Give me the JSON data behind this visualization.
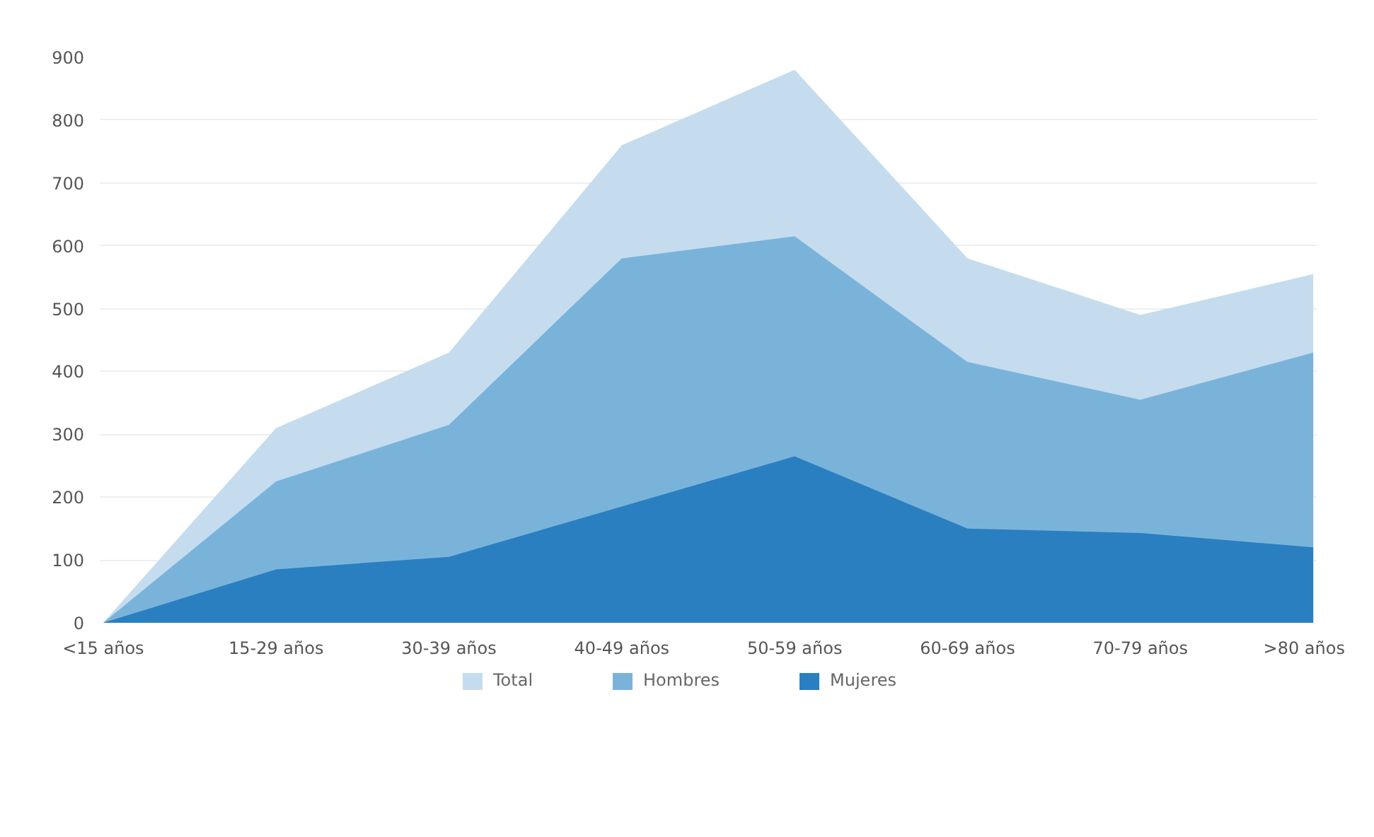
{
  "chart_data": {
    "type": "area",
    "categories": [
      "<15 años",
      "15-29 años",
      "30-39 años",
      "40-49 años",
      "50-59 años",
      "60-69 años",
      "70-79 años",
      ">80 años"
    ],
    "series": [
      {
        "name": "Total",
        "color": "#c5dcee",
        "values": [
          0,
          310,
          430,
          760,
          880,
          580,
          490,
          555
        ]
      },
      {
        "name": "Hombres",
        "color": "#7ab3da",
        "values": [
          0,
          225,
          315,
          580,
          615,
          415,
          355,
          430
        ]
      },
      {
        "name": "Mujeres",
        "color": "#2a7fc0",
        "values": [
          0,
          85,
          105,
          185,
          265,
          150,
          143,
          120
        ]
      }
    ],
    "ylim": [
      0,
      900
    ],
    "yticks": [
      0,
      100,
      200,
      300,
      400,
      500,
      600,
      700,
      800,
      900
    ],
    "grid": "y",
    "legend": "bottom"
  }
}
